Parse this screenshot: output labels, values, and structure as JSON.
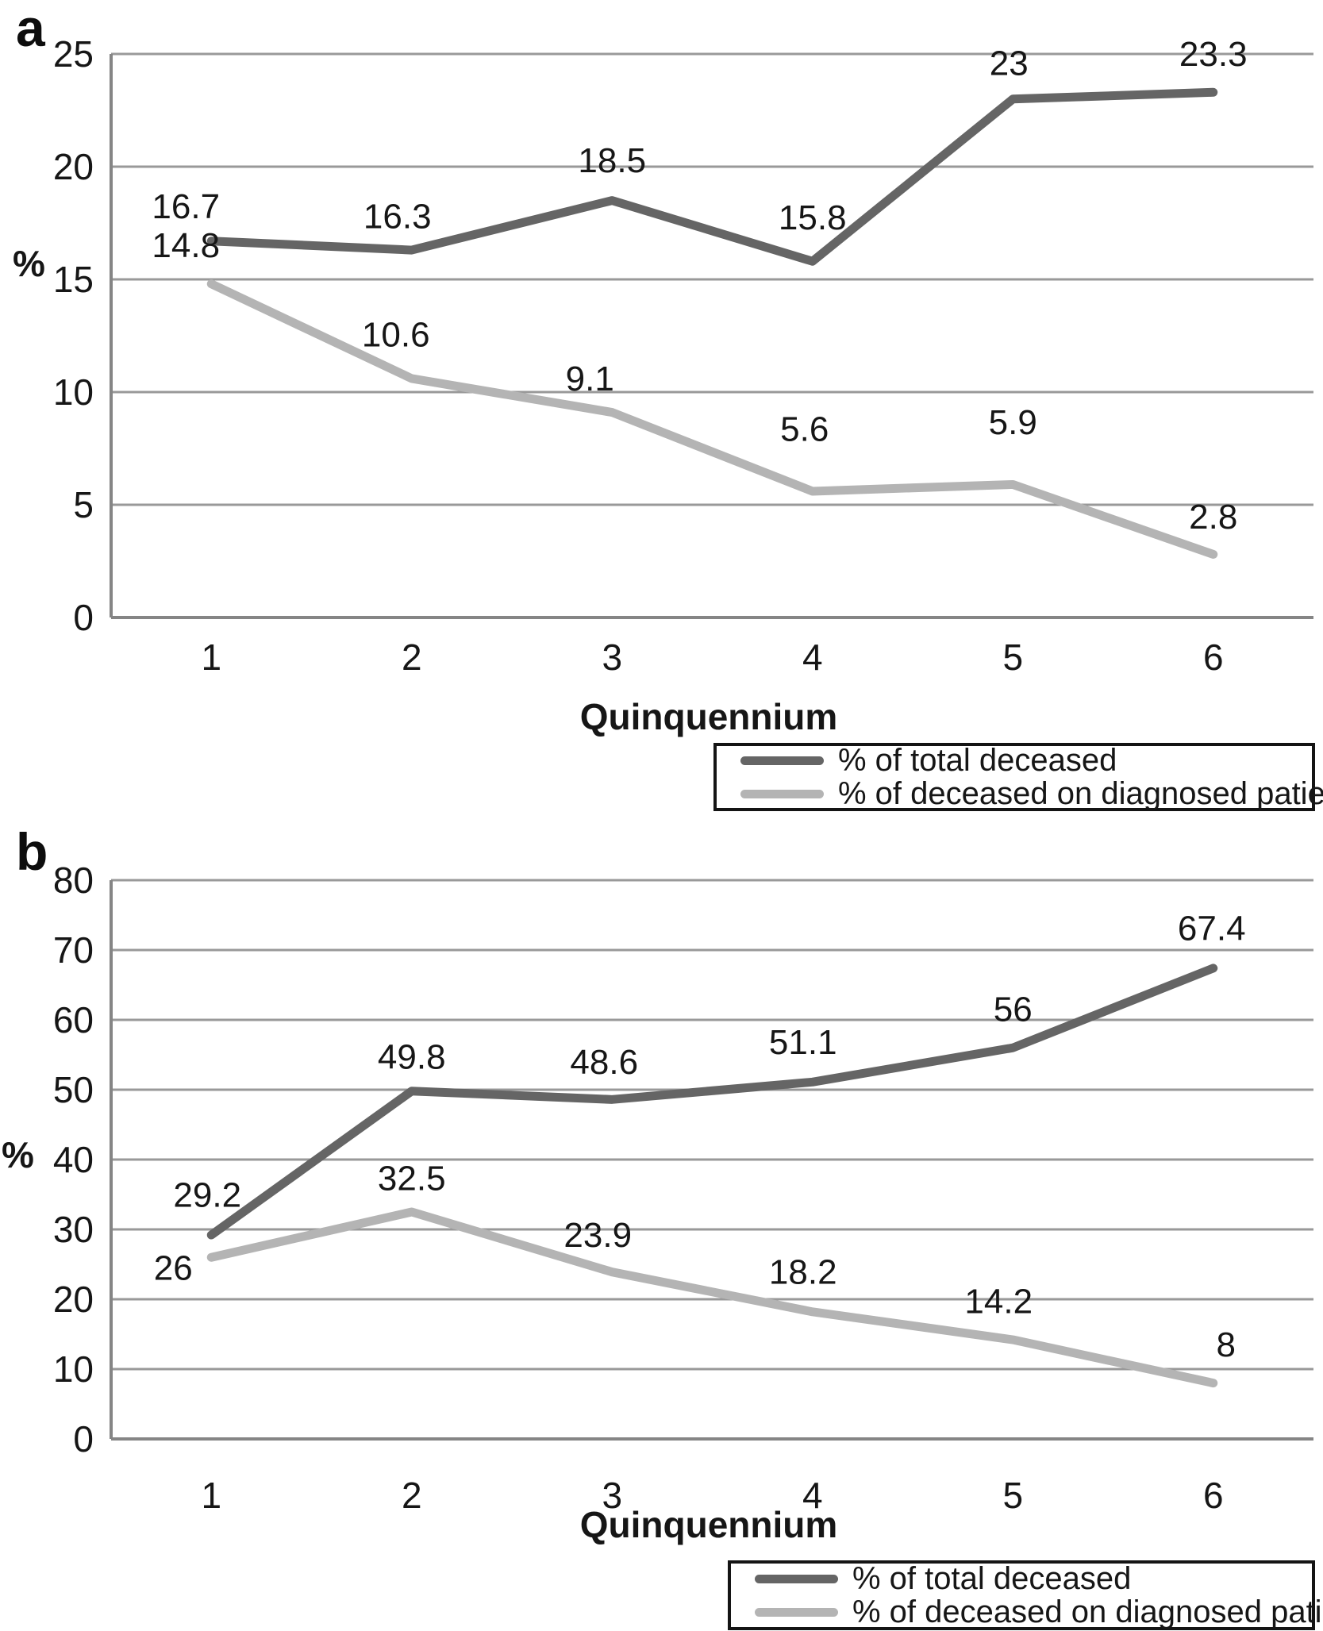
{
  "page": {
    "background": "#ffffff"
  },
  "chart_data": [
    {
      "type": "line",
      "panel_label": "a",
      "title": "",
      "xlabel": "Quinquennium",
      "ylabel": "%",
      "categories": [
        "1",
        "2",
        "3",
        "4",
        "5",
        "6"
      ],
      "ylim": [
        0,
        25
      ],
      "yticks": [
        0,
        5,
        10,
        15,
        20,
        25
      ],
      "grid": "horizontal",
      "legend_position": "below-right-boxed",
      "colors": {
        "grid": "#999999",
        "axis": "#858585",
        "label_text": "#161616"
      },
      "series": [
        {
          "name": "% of total deceased",
          "color": "#656565",
          "values": [
            16.7,
            16.3,
            18.5,
            15.8,
            23,
            23.3
          ],
          "point_labels": [
            "16.7",
            "16.3",
            "18.5",
            "15.8",
            "23",
            "23.3"
          ]
        },
        {
          "name": "% of deceased on diagnosed patients",
          "color": "#b4b4b4",
          "values": [
            14.8,
            10.6,
            9.1,
            5.6,
            5.9,
            2.8
          ],
          "point_labels": [
            "14.8",
            "10.6",
            "9.1",
            "5.6",
            "5.9",
            "2.8"
          ]
        }
      ]
    },
    {
      "type": "line",
      "panel_label": "b",
      "title": "",
      "xlabel": "Quinquennium",
      "ylabel": "%",
      "categories": [
        "1",
        "2",
        "3",
        "4",
        "5",
        "6"
      ],
      "ylim": [
        0,
        80
      ],
      "yticks": [
        0,
        10,
        20,
        30,
        40,
        50,
        60,
        70,
        80
      ],
      "grid": "horizontal",
      "legend_position": "below-right-boxed",
      "colors": {
        "grid": "#999999",
        "axis": "#858585",
        "label_text": "#161616"
      },
      "series": [
        {
          "name": "% of total deceased",
          "color": "#656565",
          "values": [
            29.2,
            49.8,
            48.6,
            51.1,
            56,
            67.4
          ],
          "point_labels": [
            "29.2",
            "49.8",
            "48.6",
            "51.1",
            "56",
            "67.4"
          ]
        },
        {
          "name": "% of deceased on diagnosed patients",
          "color": "#b4b4b4",
          "values": [
            26,
            32.5,
            23.9,
            18.2,
            14.2,
            8
          ],
          "point_labels": [
            "26",
            "32.5",
            "23.9",
            "18.2",
            "14.2",
            "8"
          ]
        }
      ]
    }
  ]
}
